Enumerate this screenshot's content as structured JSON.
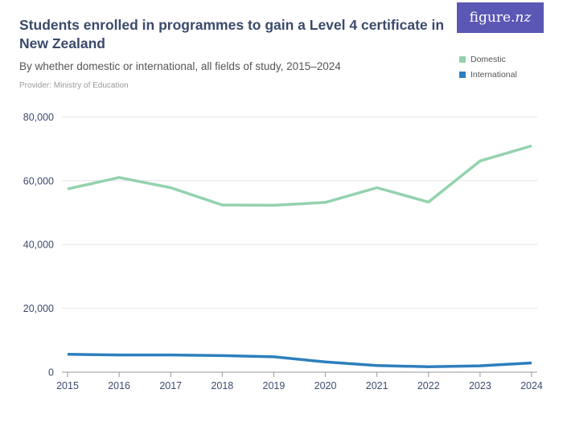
{
  "header": {
    "title": "Students enrolled in programmes to gain a Level 4 certificate in New Zealand",
    "subtitle": "By whether domestic or international, all fields of study, 2015–2024",
    "provider": "Provider: Ministry of Education"
  },
  "logo": {
    "text_main": "figure.",
    "text_nz": "nz"
  },
  "legend": [
    {
      "label": "Domestic",
      "color": "#93d2ae"
    },
    {
      "label": "International",
      "color": "#2d7fbd"
    }
  ],
  "colors": {
    "title": "#3a4a6b",
    "subtitle": "#555555",
    "provider": "#9b9b9b",
    "logo_bg": "#5b57b4",
    "gridline": "#e4e4e4",
    "axis_line": "#999999",
    "axis_label": "#3e4b6e"
  },
  "chart_data": {
    "type": "line",
    "title": "Students enrolled in programmes to gain a Level 4 certificate in New Zealand",
    "subtitle": "By whether domestic or international, all fields of study, 2015–2024",
    "x": [
      2015,
      2016,
      2017,
      2018,
      2019,
      2020,
      2021,
      2022,
      2023,
      2024
    ],
    "series": [
      {
        "name": "Domestic",
        "color": "#93d2ae",
        "values": [
          57400,
          61000,
          57800,
          52400,
          52300,
          53200,
          57800,
          53300,
          66200,
          70900
        ]
      },
      {
        "name": "International",
        "color": "#2d7fbd",
        "values": [
          5600,
          5400,
          5400,
          5200,
          4800,
          3200,
          2100,
          1700,
          2000,
          2900
        ]
      }
    ],
    "xlabel": "",
    "ylabel": "",
    "ylim": [
      0,
      80000
    ],
    "yticks": [
      0,
      20000,
      40000,
      60000,
      80000
    ],
    "ytick_labels": [
      "0",
      "20,000",
      "40,000",
      "60,000",
      "80,000"
    ],
    "grid": "horizontal",
    "legend_position": "top-right"
  }
}
